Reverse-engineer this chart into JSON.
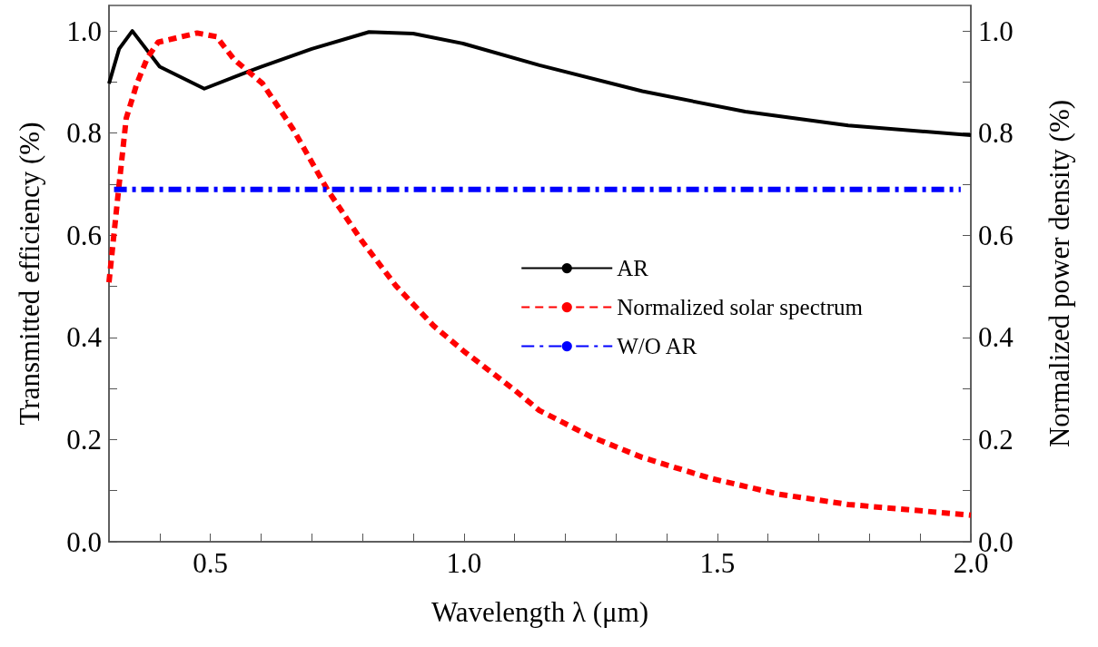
{
  "chart_data": {
    "type": "line",
    "xlabel": "Wavelength λ (μm)",
    "ylabel": "Transmitted efficiency (%)",
    "y2label": "Normalized power density (%)",
    "xlim": [
      0.3,
      2.0
    ],
    "xticks": [
      {
        "value": 0.4,
        "label": null
      },
      {
        "value": 0.5,
        "label": "0.5"
      },
      {
        "value": 0.6,
        "label": null
      },
      {
        "value": 0.7,
        "label": null
      },
      {
        "value": 0.8,
        "label": null
      },
      {
        "value": 0.9,
        "label": null
      },
      {
        "value": 1.0,
        "label": "1.0"
      },
      {
        "value": 1.1,
        "label": null
      },
      {
        "value": 1.2,
        "label": null
      },
      {
        "value": 1.3,
        "label": null
      },
      {
        "value": 1.4,
        "label": null
      },
      {
        "value": 1.5,
        "label": "1.5"
      },
      {
        "value": 1.6,
        "label": null
      },
      {
        "value": 1.7,
        "label": null
      },
      {
        "value": 1.8,
        "label": null
      },
      {
        "value": 1.9,
        "label": null
      },
      {
        "value": 2.0,
        "label": "2.0"
      }
    ],
    "ylim": [
      0,
      1.05
    ],
    "yticks": [
      {
        "value": 0,
        "label": "0.0"
      },
      {
        "value": 0.1,
        "label": null
      },
      {
        "value": 0.2,
        "label": "0.2"
      },
      {
        "value": 0.3,
        "label": null
      },
      {
        "value": 0.4,
        "label": "0.4"
      },
      {
        "value": 0.5,
        "label": null
      },
      {
        "value": 0.6,
        "label": "0.6"
      },
      {
        "value": 0.7,
        "label": null
      },
      {
        "value": 0.8,
        "label": "0.8"
      },
      {
        "value": 0.9,
        "label": null
      },
      {
        "value": 1.0,
        "label": "1.0"
      }
    ],
    "y2lim": [
      0,
      1.05
    ],
    "y2ticks": [
      {
        "value": 0,
        "label": "0.0"
      },
      {
        "value": 0.1,
        "label": null
      },
      {
        "value": 0.2,
        "label": "0.2"
      },
      {
        "value": 0.3,
        "label": null
      },
      {
        "value": 0.4,
        "label": "0.4"
      },
      {
        "value": 0.5,
        "label": null
      },
      {
        "value": 0.6,
        "label": "0.6"
      },
      {
        "value": 0.7,
        "label": null
      },
      {
        "value": 0.8,
        "label": "0.8"
      },
      {
        "value": 0.9,
        "label": null
      },
      {
        "value": 1.0,
        "label": "1.0"
      }
    ],
    "grid": false,
    "legend": "center right",
    "marker": "none",
    "series": [
      {
        "name": "AR",
        "color": "#000000",
        "line_style": "solid",
        "x": [
          0.3,
          0.32,
          0.346,
          0.4,
          0.488,
          0.576,
          0.6,
          0.7,
          0.813,
          0.9,
          1.0,
          1.149,
          1.352,
          1.555,
          1.758,
          2.0
        ],
        "values": [
          0.897,
          0.965,
          1.0,
          0.93,
          0.887,
          0.921,
          0.93,
          0.965,
          0.998,
          0.995,
          0.975,
          0.933,
          0.882,
          0.842,
          0.815,
          0.796
        ]
      },
      {
        "name": "Normalized solar spectrum",
        "color": "#ff0000",
        "line_style": "dashed",
        "x": [
          0.3,
          0.319,
          0.334,
          0.355,
          0.376,
          0.397,
          0.474,
          0.512,
          0.547,
          0.603,
          0.663,
          0.731,
          0.798,
          0.866,
          0.94,
          1.0,
          1.095,
          1.149,
          1.25,
          1.352,
          1.487,
          1.622,
          1.758,
          2.0
        ],
        "values": [
          0.508,
          0.69,
          0.829,
          0.897,
          0.948,
          0.978,
          0.996,
          0.989,
          0.944,
          0.897,
          0.808,
          0.689,
          0.59,
          0.501,
          0.423,
          0.373,
          0.301,
          0.257,
          0.206,
          0.165,
          0.124,
          0.093,
          0.073,
          0.052
        ]
      },
      {
        "name": "W/O AR",
        "color": "#0000ff",
        "line_style": "dashdot",
        "x": [
          0.31,
          1.98
        ],
        "values": [
          0.69,
          0.69
        ]
      }
    ]
  }
}
